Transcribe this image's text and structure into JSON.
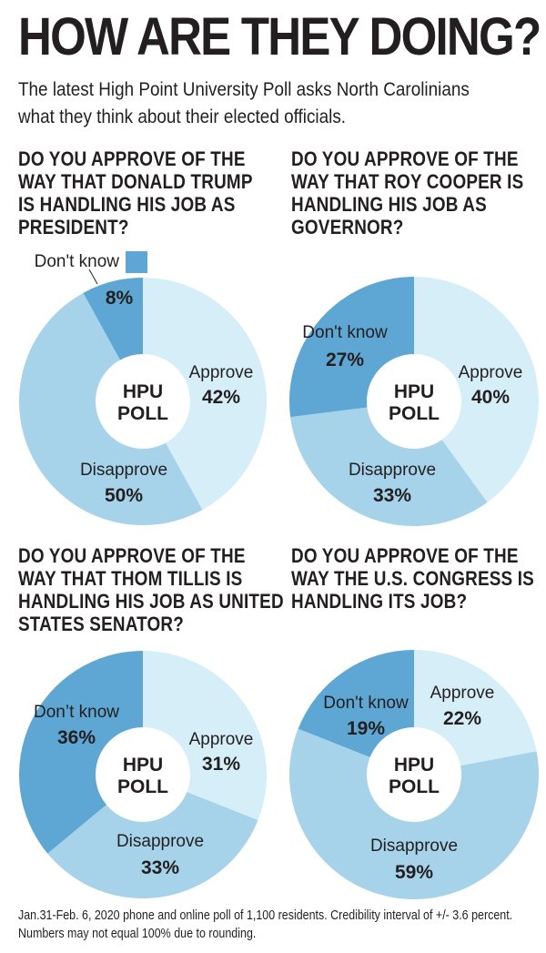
{
  "header": {
    "title": "HOW ARE THEY DOING?",
    "subtitle": "The latest High Point University Poll asks North Carolinians what they think about their elected officials."
  },
  "colors": {
    "approve": "#d5eef7",
    "disapprove": "#a6d3ea",
    "dont_know": "#5ea6d3",
    "text": "#231f20"
  },
  "center_label": [
    "HPU",
    "POLL"
  ],
  "chart_data": [
    {
      "type": "pie",
      "title": "DO YOU APPROVE OF THE WAY THAT DONALD TRUMP IS HANDLING HIS JOB AS PRESIDENT?",
      "categories": [
        "Approve",
        "Disapprove",
        "Don't know"
      ],
      "values": [
        42,
        50,
        8
      ],
      "value_labels": [
        "42%",
        "50%",
        "8%"
      ]
    },
    {
      "type": "pie",
      "title": "DO YOU APPROVE OF THE WAY THAT ROY COOPER IS HANDLING HIS JOB AS GOVERNOR?",
      "categories": [
        "Approve",
        "Disapprove",
        "Don't know"
      ],
      "values": [
        40,
        33,
        27
      ],
      "value_labels": [
        "40%",
        "33%",
        "27%"
      ]
    },
    {
      "type": "pie",
      "title": "DO YOU APPROVE OF THE WAY THAT THOM TILLIS IS HANDLING HIS JOB AS UNITED STATES SENATOR?",
      "categories": [
        "Approve",
        "Disapprove",
        "Don’t know"
      ],
      "values": [
        31,
        33,
        36
      ],
      "value_labels": [
        "31%",
        "33%",
        "36%"
      ]
    },
    {
      "type": "pie",
      "title": "DO YOU APPROVE OF THE WAY THE U.S. CONGRESS IS HANDLING ITS JOB?",
      "categories": [
        "Approve",
        "Disapprove",
        "Don't know"
      ],
      "values": [
        22,
        59,
        19
      ],
      "value_labels": [
        "22%",
        "59%",
        "19%"
      ]
    }
  ],
  "footnote": "Jan.31-Feb. 6, 2020 phone and online poll of 1,100 residents. Credibility interval of +/- 3.6 percent. Numbers may not equal 100% due to rounding."
}
